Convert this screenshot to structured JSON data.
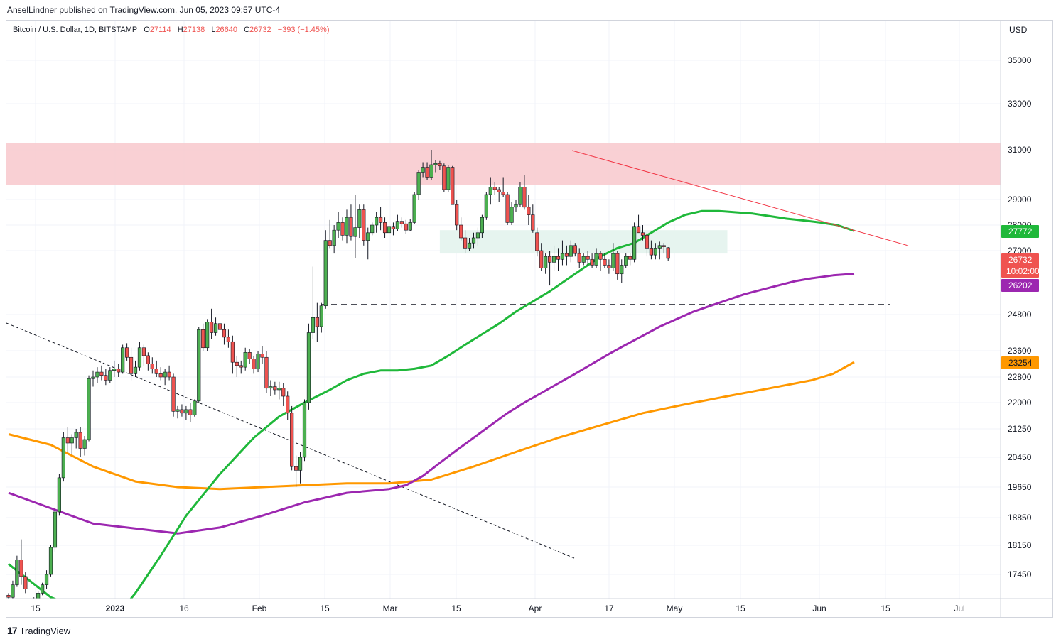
{
  "header": {
    "publisher_text": "AnselLindner published on TradingView.com, Jun 05, 2023 09:57 UTC-4"
  },
  "legend": {
    "symbol": "Bitcoin / U.S. Dollar, 1D, BITSTAMP",
    "open_label": "O",
    "open": "27114",
    "high_label": "H",
    "high": "27138",
    "low_label": "L",
    "low": "26640",
    "close_label": "C",
    "close": "26732",
    "change": "−393 (−1.45%)"
  },
  "footer": {
    "logo": "17",
    "brand": "TradingView"
  },
  "colors": {
    "up": "#4caf50",
    "down": "#ef5350",
    "ma_green": "#1fb83a",
    "ma_purple": "#9c27b0",
    "ma_orange": "#ff9800",
    "resistance_zone": "#f8c8cc",
    "support_zone": "#e6f4ef"
  },
  "chart_data": {
    "type": "candlestick",
    "currency_label": "USD",
    "y_ticks": [
      "35000",
      "33000",
      "31000",
      "29000",
      "28000",
      "27000",
      "24800",
      "23600",
      "22800",
      "22000",
      "21250",
      "20450",
      "19650",
      "18850",
      "18150",
      "17450"
    ],
    "x_ticks": [
      "15",
      "2023",
      "16",
      "Feb",
      "15",
      "Mar",
      "15",
      "Apr",
      "17",
      "May",
      "15",
      "Jun",
      "15",
      "Jul"
    ],
    "price_badges": [
      {
        "name": "ma-green",
        "value": "27772",
        "color": "#1fb83a"
      },
      {
        "name": "last-price",
        "value": "26732",
        "countdown": "10:02:00",
        "color": "#ef5350"
      },
      {
        "name": "ma-purple",
        "value": "26202",
        "color": "#9c27b0"
      },
      {
        "name": "ma-orange",
        "value": "23254",
        "color": "#ff9800"
      }
    ],
    "annotations": {
      "resistance_zone": [
        29600,
        31300
      ],
      "support_zone": [
        26900,
        27800
      ],
      "horizontal_dashed_level": 25150
    },
    "candles_ohlc": [
      [
        16950,
        17000,
        16800,
        16900
      ],
      [
        16900,
        17300,
        16850,
        17200
      ],
      [
        17200,
        17900,
        17150,
        17800
      ],
      [
        17800,
        18300,
        17200,
        17400
      ],
      [
        17400,
        17500,
        17000,
        17100
      ],
      [
        16700,
        16800,
        16500,
        16650
      ],
      [
        16650,
        16900,
        16600,
        16800
      ],
      [
        16800,
        17050,
        16750,
        17000
      ],
      [
        17000,
        17250,
        16950,
        17200
      ],
      [
        17200,
        17550,
        17100,
        17450
      ],
      [
        17450,
        18150,
        17400,
        18100
      ],
      [
        18100,
        19100,
        18000,
        19000
      ],
      [
        19000,
        20000,
        18900,
        19900
      ],
      [
        19900,
        21150,
        19800,
        21000
      ],
      [
        21000,
        21300,
        20600,
        20850
      ],
      [
        20850,
        21100,
        20550,
        21000
      ],
      [
        21000,
        21250,
        20700,
        21150
      ],
      [
        21150,
        21300,
        20450,
        20700
      ],
      [
        20700,
        21050,
        20500,
        20950
      ],
      [
        20950,
        22850,
        20900,
        22750
      ],
      [
        22750,
        23000,
        22500,
        22800
      ],
      [
        22800,
        23100,
        22600,
        22950
      ],
      [
        22950,
        23150,
        22700,
        22850
      ],
      [
        22850,
        23050,
        22550,
        22700
      ],
      [
        22700,
        23100,
        22600,
        23000
      ],
      [
        23000,
        23300,
        22800,
        23050
      ],
      [
        23050,
        23200,
        22800,
        22950
      ],
      [
        22950,
        23800,
        22900,
        23700
      ],
      [
        23700,
        23850,
        23300,
        23400
      ],
      [
        23400,
        23700,
        22700,
        22900
      ],
      [
        22900,
        23300,
        22800,
        23100
      ],
      [
        23100,
        23900,
        23000,
        23700
      ],
      [
        23700,
        23800,
        23150,
        23450
      ],
      [
        23450,
        23550,
        23000,
        23200
      ],
      [
        23200,
        23400,
        22900,
        23050
      ],
      [
        23050,
        23300,
        22800,
        22900
      ],
      [
        22900,
        23100,
        22700,
        22800
      ],
      [
        22800,
        23050,
        22550,
        22950
      ],
      [
        22950,
        23150,
        22700,
        22800
      ],
      [
        22800,
        22900,
        21600,
        21750
      ],
      [
        21750,
        21900,
        21550,
        21800
      ],
      [
        21800,
        21950,
        21600,
        21700
      ],
      [
        21700,
        21900,
        21500,
        21800
      ],
      [
        21800,
        22000,
        21450,
        21650
      ],
      [
        21650,
        22100,
        21600,
        22050
      ],
      [
        22050,
        24400,
        22000,
        24300
      ],
      [
        24300,
        24500,
        23600,
        23700
      ],
      [
        23700,
        24650,
        23600,
        24550
      ],
      [
        24550,
        25000,
        24000,
        24200
      ],
      [
        24200,
        24700,
        24100,
        24500
      ],
      [
        24500,
        24950,
        24100,
        24300
      ],
      [
        24300,
        24500,
        23800,
        24050
      ],
      [
        24050,
        24300,
        23700,
        23900
      ],
      [
        23900,
        24100,
        22900,
        23250
      ],
      [
        23250,
        23450,
        22800,
        23150
      ],
      [
        23150,
        23300,
        22900,
        23100
      ],
      [
        23100,
        23700,
        23000,
        23550
      ],
      [
        23550,
        23650,
        23200,
        23350
      ],
      [
        23350,
        23450,
        22900,
        23050
      ],
      [
        23050,
        23600,
        22950,
        23500
      ],
      [
        23500,
        23750,
        23200,
        23400
      ],
      [
        23400,
        23600,
        22300,
        22450
      ],
      [
        22450,
        22700,
        22200,
        22500
      ],
      [
        22500,
        22650,
        22250,
        22400
      ],
      [
        22400,
        22650,
        22100,
        22450
      ],
      [
        22450,
        22600,
        21900,
        22200
      ],
      [
        22200,
        22350,
        21500,
        21700
      ],
      [
        21700,
        21900,
        20100,
        20200
      ],
      [
        20200,
        20500,
        19650,
        20100
      ],
      [
        20100,
        20600,
        19750,
        20450
      ],
      [
        20450,
        22100,
        20350,
        22000
      ],
      [
        22000,
        24500,
        21800,
        24200
      ],
      [
        24200,
        26450,
        24000,
        24700
      ],
      [
        24700,
        25200,
        23900,
        24400
      ],
      [
        24400,
        25200,
        24200,
        25100
      ],
      [
        25100,
        27800,
        25000,
        27400
      ],
      [
        27400,
        28200,
        27100,
        27200
      ],
      [
        27200,
        28000,
        26900,
        27800
      ],
      [
        27800,
        28500,
        27500,
        28100
      ],
      [
        28100,
        28300,
        27400,
        27600
      ],
      [
        27600,
        28600,
        27300,
        28300
      ],
      [
        28300,
        28800,
        27400,
        27550
      ],
      [
        27550,
        29200,
        26750,
        27900
      ],
      [
        27900,
        28800,
        27500,
        28600
      ],
      [
        28600,
        28800,
        27200,
        27400
      ],
      [
        27400,
        27900,
        26700,
        27700
      ],
      [
        27700,
        28100,
        27600,
        28000
      ],
      [
        28000,
        28500,
        27700,
        28300
      ],
      [
        28300,
        28700,
        27800,
        28100
      ],
      [
        28100,
        28300,
        27500,
        27700
      ],
      [
        27700,
        28200,
        27300,
        27950
      ],
      [
        27950,
        28100,
        27600,
        27850
      ],
      [
        27850,
        28400,
        27750,
        28150
      ],
      [
        28150,
        28300,
        27900,
        28050
      ],
      [
        28050,
        28200,
        27650,
        27800
      ],
      [
        27800,
        28250,
        27750,
        28100
      ],
      [
        28100,
        29300,
        28050,
        29200
      ],
      [
        29200,
        30200,
        29000,
        30100
      ],
      [
        30100,
        30500,
        29900,
        30300
      ],
      [
        30300,
        30500,
        29800,
        29900
      ],
      [
        29900,
        31000,
        29800,
        30400
      ],
      [
        30400,
        30600,
        30100,
        30450
      ],
      [
        30450,
        30550,
        30200,
        30350
      ],
      [
        30350,
        30450,
        29300,
        29400
      ],
      [
        29400,
        30400,
        29300,
        30300
      ],
      [
        30300,
        30350,
        28900,
        28800
      ],
      [
        28800,
        29000,
        27800,
        28000
      ],
      [
        28000,
        28300,
        27400,
        27500
      ],
      [
        27500,
        27800,
        26900,
        27100
      ],
      [
        27100,
        27500,
        27000,
        27300
      ],
      [
        27300,
        27700,
        27100,
        27500
      ],
      [
        27500,
        27900,
        27200,
        27700
      ],
      [
        27700,
        28400,
        27500,
        28300
      ],
      [
        28300,
        29300,
        28200,
        29200
      ],
      [
        29200,
        29900,
        28800,
        29500
      ],
      [
        29500,
        29700,
        29200,
        29400
      ],
      [
        29400,
        29500,
        28900,
        29300
      ],
      [
        29300,
        29900,
        29100,
        29200
      ],
      [
        29200,
        29300,
        28000,
        28100
      ],
      [
        28100,
        28900,
        28000,
        28700
      ],
      [
        28700,
        29000,
        28500,
        28800
      ],
      [
        28800,
        29700,
        28700,
        29500
      ],
      [
        29500,
        30000,
        28600,
        28700
      ],
      [
        28700,
        29200,
        28000,
        28400
      ],
      [
        28400,
        28800,
        27700,
        27800
      ],
      [
        27700,
        27900,
        26800,
        27000
      ],
      [
        27000,
        27300,
        26300,
        26400
      ],
      [
        26400,
        26900,
        26200,
        26800
      ],
      [
        26800,
        27000,
        25800,
        26600
      ],
      [
        26600,
        27200,
        26300,
        26800
      ],
      [
        26800,
        27100,
        26300,
        26700
      ],
      [
        26700,
        27400,
        26500,
        26900
      ],
      [
        26900,
        27200,
        26500,
        26800
      ],
      [
        26800,
        27400,
        26600,
        27200
      ],
      [
        27200,
        27300,
        26800,
        26900
      ],
      [
        26900,
        27100,
        26400,
        26600
      ],
      [
        26600,
        26900,
        26500,
        26800
      ],
      [
        26800,
        27000,
        26500,
        26700
      ],
      [
        26700,
        26900,
        26400,
        26500
      ],
      [
        26500,
        27100,
        26400,
        26900
      ],
      [
        26900,
        27000,
        26300,
        26700
      ],
      [
        26700,
        26900,
        26400,
        26500
      ],
      [
        26500,
        26700,
        26200,
        26400
      ],
      [
        26400,
        27300,
        26300,
        26900
      ],
      [
        26900,
        27000,
        26000,
        26200
      ],
      [
        26200,
        26700,
        25900,
        26500
      ],
      [
        26500,
        26900,
        26400,
        26800
      ],
      [
        26800,
        26900,
        26500,
        26700
      ],
      [
        26700,
        28100,
        26600,
        27950
      ],
      [
        27950,
        28400,
        27700,
        27700
      ],
      [
        27700,
        28000,
        27400,
        27600
      ],
      [
        27600,
        27700,
        26800,
        27100
      ],
      [
        27100,
        27400,
        26700,
        26850
      ],
      [
        26850,
        27300,
        26700,
        27100
      ],
      [
        27100,
        27350,
        26700,
        27200
      ],
      [
        27200,
        27300,
        26900,
        27150
      ],
      [
        27114,
        27138,
        26640,
        26732
      ]
    ],
    "moving_average_green": [
      [
        0,
        17700
      ],
      [
        10,
        16900
      ],
      [
        20,
        16500
      ],
      [
        26,
        16500
      ],
      [
        30,
        17000
      ],
      [
        36,
        17900
      ],
      [
        42,
        18900
      ],
      [
        50,
        20000
      ],
      [
        58,
        21000
      ],
      [
        64,
        21600
      ],
      [
        70,
        22000
      ],
      [
        76,
        22400
      ],
      [
        80,
        22700
      ],
      [
        84,
        22900
      ],
      [
        88,
        23000
      ],
      [
        92,
        23000
      ],
      [
        96,
        23050
      ],
      [
        100,
        23150
      ],
      [
        104,
        23450
      ],
      [
        108,
        23800
      ],
      [
        112,
        24150
      ],
      [
        116,
        24500
      ],
      [
        120,
        24900
      ],
      [
        124,
        25250
      ],
      [
        128,
        25600
      ],
      [
        132,
        26000
      ],
      [
        136,
        26400
      ],
      [
        140,
        26800
      ],
      [
        144,
        27100
      ],
      [
        148,
        27300
      ],
      [
        152,
        27700
      ],
      [
        156,
        28100
      ],
      [
        160,
        28400
      ],
      [
        164,
        28550
      ],
      [
        168,
        28550
      ],
      [
        172,
        28500
      ],
      [
        176,
        28450
      ],
      [
        180,
        28350
      ],
      [
        184,
        28250
      ],
      [
        188,
        28180
      ],
      [
        192,
        28100
      ],
      [
        196,
        28000
      ],
      [
        200,
        27772
      ]
    ],
    "moving_average_purple": [
      [
        0,
        19500
      ],
      [
        20,
        18700
      ],
      [
        40,
        18450
      ],
      [
        50,
        18600
      ],
      [
        60,
        18900
      ],
      [
        70,
        19250
      ],
      [
        80,
        19500
      ],
      [
        90,
        19600
      ],
      [
        94,
        19700
      ],
      [
        98,
        19950
      ],
      [
        102,
        20300
      ],
      [
        106,
        20650
      ],
      [
        110,
        21000
      ],
      [
        114,
        21350
      ],
      [
        118,
        21700
      ],
      [
        122,
        22000
      ],
      [
        126,
        22300
      ],
      [
        130,
        22600
      ],
      [
        134,
        22900
      ],
      [
        138,
        23200
      ],
      [
        142,
        23500
      ],
      [
        146,
        23800
      ],
      [
        150,
        24100
      ],
      [
        154,
        24400
      ],
      [
        158,
        24650
      ],
      [
        162,
        24900
      ],
      [
        166,
        25100
      ],
      [
        170,
        25300
      ],
      [
        174,
        25500
      ],
      [
        178,
        25650
      ],
      [
        182,
        25800
      ],
      [
        186,
        25950
      ],
      [
        190,
        26050
      ],
      [
        195,
        26150
      ],
      [
        200,
        26202
      ]
    ],
    "moving_average_orange": [
      [
        0,
        21100
      ],
      [
        10,
        20800
      ],
      [
        20,
        20200
      ],
      [
        30,
        19800
      ],
      [
        40,
        19650
      ],
      [
        50,
        19600
      ],
      [
        60,
        19650
      ],
      [
        70,
        19700
      ],
      [
        80,
        19750
      ],
      [
        90,
        19750
      ],
      [
        100,
        19850
      ],
      [
        110,
        20200
      ],
      [
        120,
        20600
      ],
      [
        130,
        21000
      ],
      [
        140,
        21350
      ],
      [
        150,
        21700
      ],
      [
        160,
        21950
      ],
      [
        170,
        22200
      ],
      [
        180,
        22450
      ],
      [
        190,
        22700
      ],
      [
        195,
        22900
      ],
      [
        200,
        23254
      ]
    ],
    "trendline_red": {
      "from": [
        0,
        30950
      ],
      "to": [
        200,
        27600
      ],
      "extend_to": 225
    },
    "trendline_dashed": [
      [
        0,
        25000
      ],
      [
        200,
        19700
      ],
      [
        230,
        18000
      ]
    ]
  }
}
